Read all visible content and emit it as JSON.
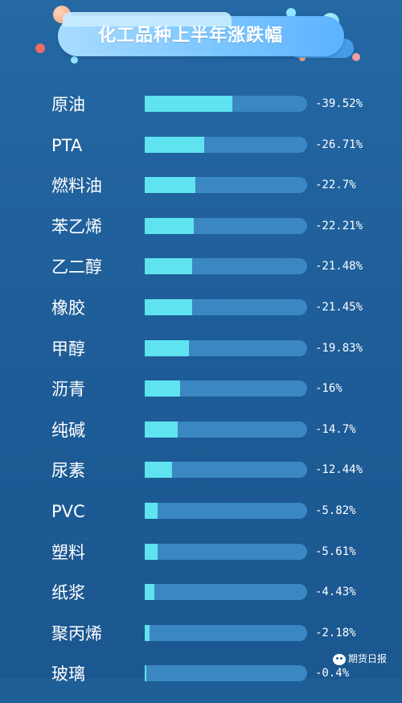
{
  "header": {
    "title": "化工品种上半年涨跌幅"
  },
  "colors": {
    "background": "#1f5f97",
    "track": "#3a87c2",
    "bar": "#5fe3f0",
    "header_pill": "#7cc6ff"
  },
  "chart_data": {
    "type": "bar",
    "orientation": "horizontal",
    "title": "化工品种上半年涨跌幅",
    "categories": [
      "原油",
      "PTA",
      "燃料油",
      "苯乙烯",
      "乙二醇",
      "橡胶",
      "甲醇",
      "沥青",
      "纯碱",
      "尿素",
      "PVC",
      "塑料",
      "纸浆",
      "聚丙烯",
      "玻璃"
    ],
    "value_labels": [
      "-39.52%",
      "-26.71%",
      "-22.7%",
      "-22.21%",
      "-21.48%",
      "-21.45%",
      "-19.83%",
      "-16%",
      "-14.7%",
      "-12.44%",
      "-5.82%",
      "-5.61%",
      "-4.43%",
      "-2.18%",
      "-0.4%"
    ],
    "values": [
      -39.52,
      -26.71,
      -22.7,
      -22.21,
      -21.48,
      -21.45,
      -19.83,
      -16,
      -14.7,
      -12.44,
      -5.82,
      -5.61,
      -4.43,
      -2.18,
      -0.4
    ],
    "scale_max_abs": 73,
    "grid": false,
    "legend": "none"
  },
  "watermark": {
    "text": "期货日报",
    "icon": "wechat-icon"
  }
}
